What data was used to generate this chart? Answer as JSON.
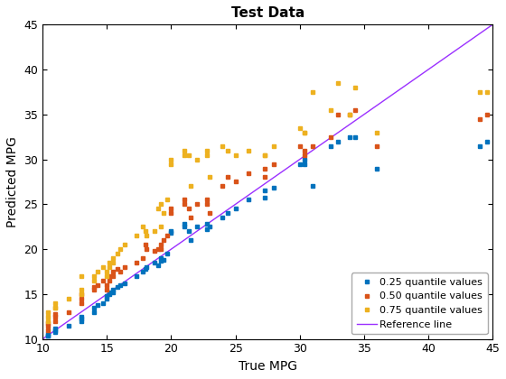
{
  "title": "Test Data",
  "xlabel": "True MPG",
  "ylabel": "Predicted MPG",
  "xlim": [
    10,
    45
  ],
  "ylim": [
    10,
    45
  ],
  "xticks": [
    10,
    15,
    20,
    25,
    30,
    35,
    40,
    45
  ],
  "yticks": [
    10,
    15,
    20,
    25,
    30,
    35,
    40,
    45
  ],
  "ref_line_color": "#9B30FF",
  "color_025": "#0072BD",
  "color_050": "#D95319",
  "color_075": "#EDB120",
  "marker": "s",
  "markersize": 3.5,
  "true_mpg": [
    10.4,
    10.4,
    10.4,
    11.0,
    11.0,
    11.0,
    12.0,
    13.0,
    13.0,
    13.0,
    14.0,
    14.0,
    14.3,
    14.7,
    15.0,
    15.0,
    15.2,
    15.2,
    15.5,
    15.5,
    15.8,
    16.0,
    16.4,
    17.3,
    17.8,
    18.0,
    18.1,
    18.7,
    19.0,
    19.2,
    19.2,
    19.4,
    19.7,
    20.0,
    20.0,
    21.0,
    21.0,
    21.4,
    21.5,
    22.0,
    22.8,
    22.8,
    23.0,
    24.0,
    24.4,
    25.0,
    26.0,
    27.3,
    27.3,
    28.0,
    30.0,
    30.4,
    30.4,
    31.0,
    32.4,
    33.0,
    33.9,
    34.3,
    36.0,
    44.0,
    44.6
  ],
  "pred_025": [
    10.4,
    10.4,
    10.6,
    10.8,
    11.0,
    11.2,
    11.5,
    12.0,
    12.3,
    12.5,
    13.0,
    13.5,
    13.8,
    14.0,
    14.5,
    14.8,
    15.0,
    15.2,
    15.2,
    15.5,
    15.8,
    16.0,
    16.2,
    17.0,
    17.5,
    17.8,
    18.0,
    18.5,
    18.2,
    18.7,
    19.0,
    18.8,
    19.5,
    22.0,
    21.8,
    22.5,
    22.8,
    22.0,
    21.0,
    22.5,
    22.2,
    22.8,
    22.5,
    23.5,
    24.0,
    24.5,
    25.5,
    26.5,
    25.7,
    26.8,
    29.5,
    29.5,
    30.0,
    27.0,
    31.5,
    32.0,
    32.5,
    32.5,
    29.0,
    31.5,
    32.0
  ],
  "pred_050": [
    11.5,
    11.0,
    11.8,
    12.0,
    12.5,
    12.8,
    13.0,
    14.0,
    14.5,
    15.0,
    15.5,
    15.8,
    16.0,
    16.5,
    15.5,
    16.0,
    16.5,
    17.0,
    17.5,
    17.0,
    17.8,
    17.5,
    18.0,
    18.5,
    19.0,
    20.5,
    20.0,
    19.8,
    20.0,
    20.5,
    20.0,
    21.0,
    21.5,
    24.5,
    24.0,
    25.0,
    25.5,
    24.5,
    23.5,
    25.0,
    25.0,
    25.5,
    24.0,
    27.0,
    28.0,
    27.5,
    28.5,
    28.0,
    29.0,
    29.5,
    31.5,
    31.0,
    30.5,
    31.5,
    32.5,
    35.0,
    35.0,
    35.5,
    31.5,
    34.5,
    35.0
  ],
  "pred_075": [
    12.5,
    12.0,
    13.0,
    13.5,
    13.5,
    14.0,
    14.5,
    15.0,
    15.5,
    17.0,
    16.5,
    17.0,
    17.5,
    18.0,
    17.0,
    17.5,
    18.0,
    18.5,
    18.5,
    19.0,
    19.5,
    20.0,
    20.5,
    21.5,
    22.5,
    22.0,
    21.5,
    22.0,
    24.5,
    25.0,
    22.5,
    24.0,
    25.5,
    29.5,
    30.0,
    30.5,
    31.0,
    30.5,
    27.0,
    30.0,
    30.5,
    31.0,
    28.0,
    31.5,
    31.0,
    30.5,
    31.0,
    30.5,
    30.5,
    31.5,
    33.5,
    33.0,
    33.0,
    37.5,
    35.5,
    38.5,
    35.0,
    38.0,
    33.0,
    37.5,
    37.5
  ]
}
